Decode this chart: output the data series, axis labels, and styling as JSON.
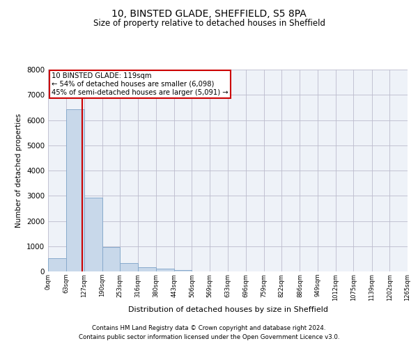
{
  "title": "10, BINSTED GLADE, SHEFFIELD, S5 8PA",
  "subtitle": "Size of property relative to detached houses in Sheffield",
  "xlabel": "Distribution of detached houses by size in Sheffield",
  "ylabel": "Number of detached properties",
  "bin_edges": [
    0,
    63,
    127,
    190,
    253,
    316,
    380,
    443,
    506,
    569,
    633,
    696,
    759,
    822,
    886,
    949,
    1012,
    1075,
    1139,
    1202,
    1265
  ],
  "bin_labels": [
    "0sqm",
    "63sqm",
    "127sqm",
    "190sqm",
    "253sqm",
    "316sqm",
    "380sqm",
    "443sqm",
    "506sqm",
    "569sqm",
    "633sqm",
    "696sqm",
    "759sqm",
    "822sqm",
    "886sqm",
    "949sqm",
    "1012sqm",
    "1075sqm",
    "1139sqm",
    "1202sqm",
    "1265sqm"
  ],
  "bar_heights": [
    530,
    6430,
    2920,
    960,
    330,
    160,
    100,
    65,
    0,
    0,
    0,
    0,
    0,
    0,
    0,
    0,
    0,
    0,
    0,
    0
  ],
  "bar_color": "#c8d8ea",
  "bar_edgecolor": "#88aacc",
  "vline_x": 119,
  "vline_color": "#cc0000",
  "annotation_text": "10 BINSTED GLADE: 119sqm\n← 54% of detached houses are smaller (6,098)\n45% of semi-detached houses are larger (5,091) →",
  "annotation_box_color": "#cc0000",
  "ylim": [
    0,
    8000
  ],
  "yticks": [
    0,
    1000,
    2000,
    3000,
    4000,
    5000,
    6000,
    7000,
    8000
  ],
  "grid_color": "#bbbbcc",
  "bg_color": "#eef2f8",
  "footer_line1": "Contains HM Land Registry data © Crown copyright and database right 2024.",
  "footer_line2": "Contains public sector information licensed under the Open Government Licence v3.0."
}
